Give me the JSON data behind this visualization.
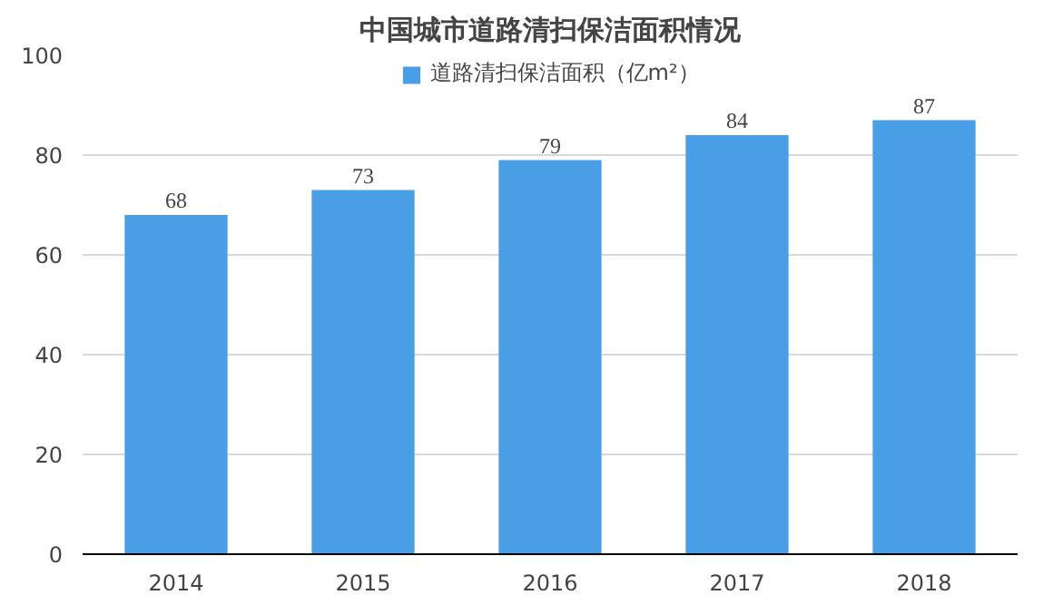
{
  "chart_data": {
    "type": "bar",
    "title": "中国城市道路清扫保洁面积情况",
    "categories": [
      "2014",
      "2015",
      "2016",
      "2017",
      "2018"
    ],
    "series": [
      {
        "name": "道路清扫保洁面积（亿m²）",
        "color": "#4a9ee6",
        "values": [
          68,
          73,
          79,
          84,
          87
        ]
      }
    ],
    "ylim": [
      0,
      100
    ],
    "yticks": [
      0,
      20,
      40,
      60,
      80,
      100
    ],
    "grid": "y",
    "legend": "top",
    "data_labels": true
  }
}
